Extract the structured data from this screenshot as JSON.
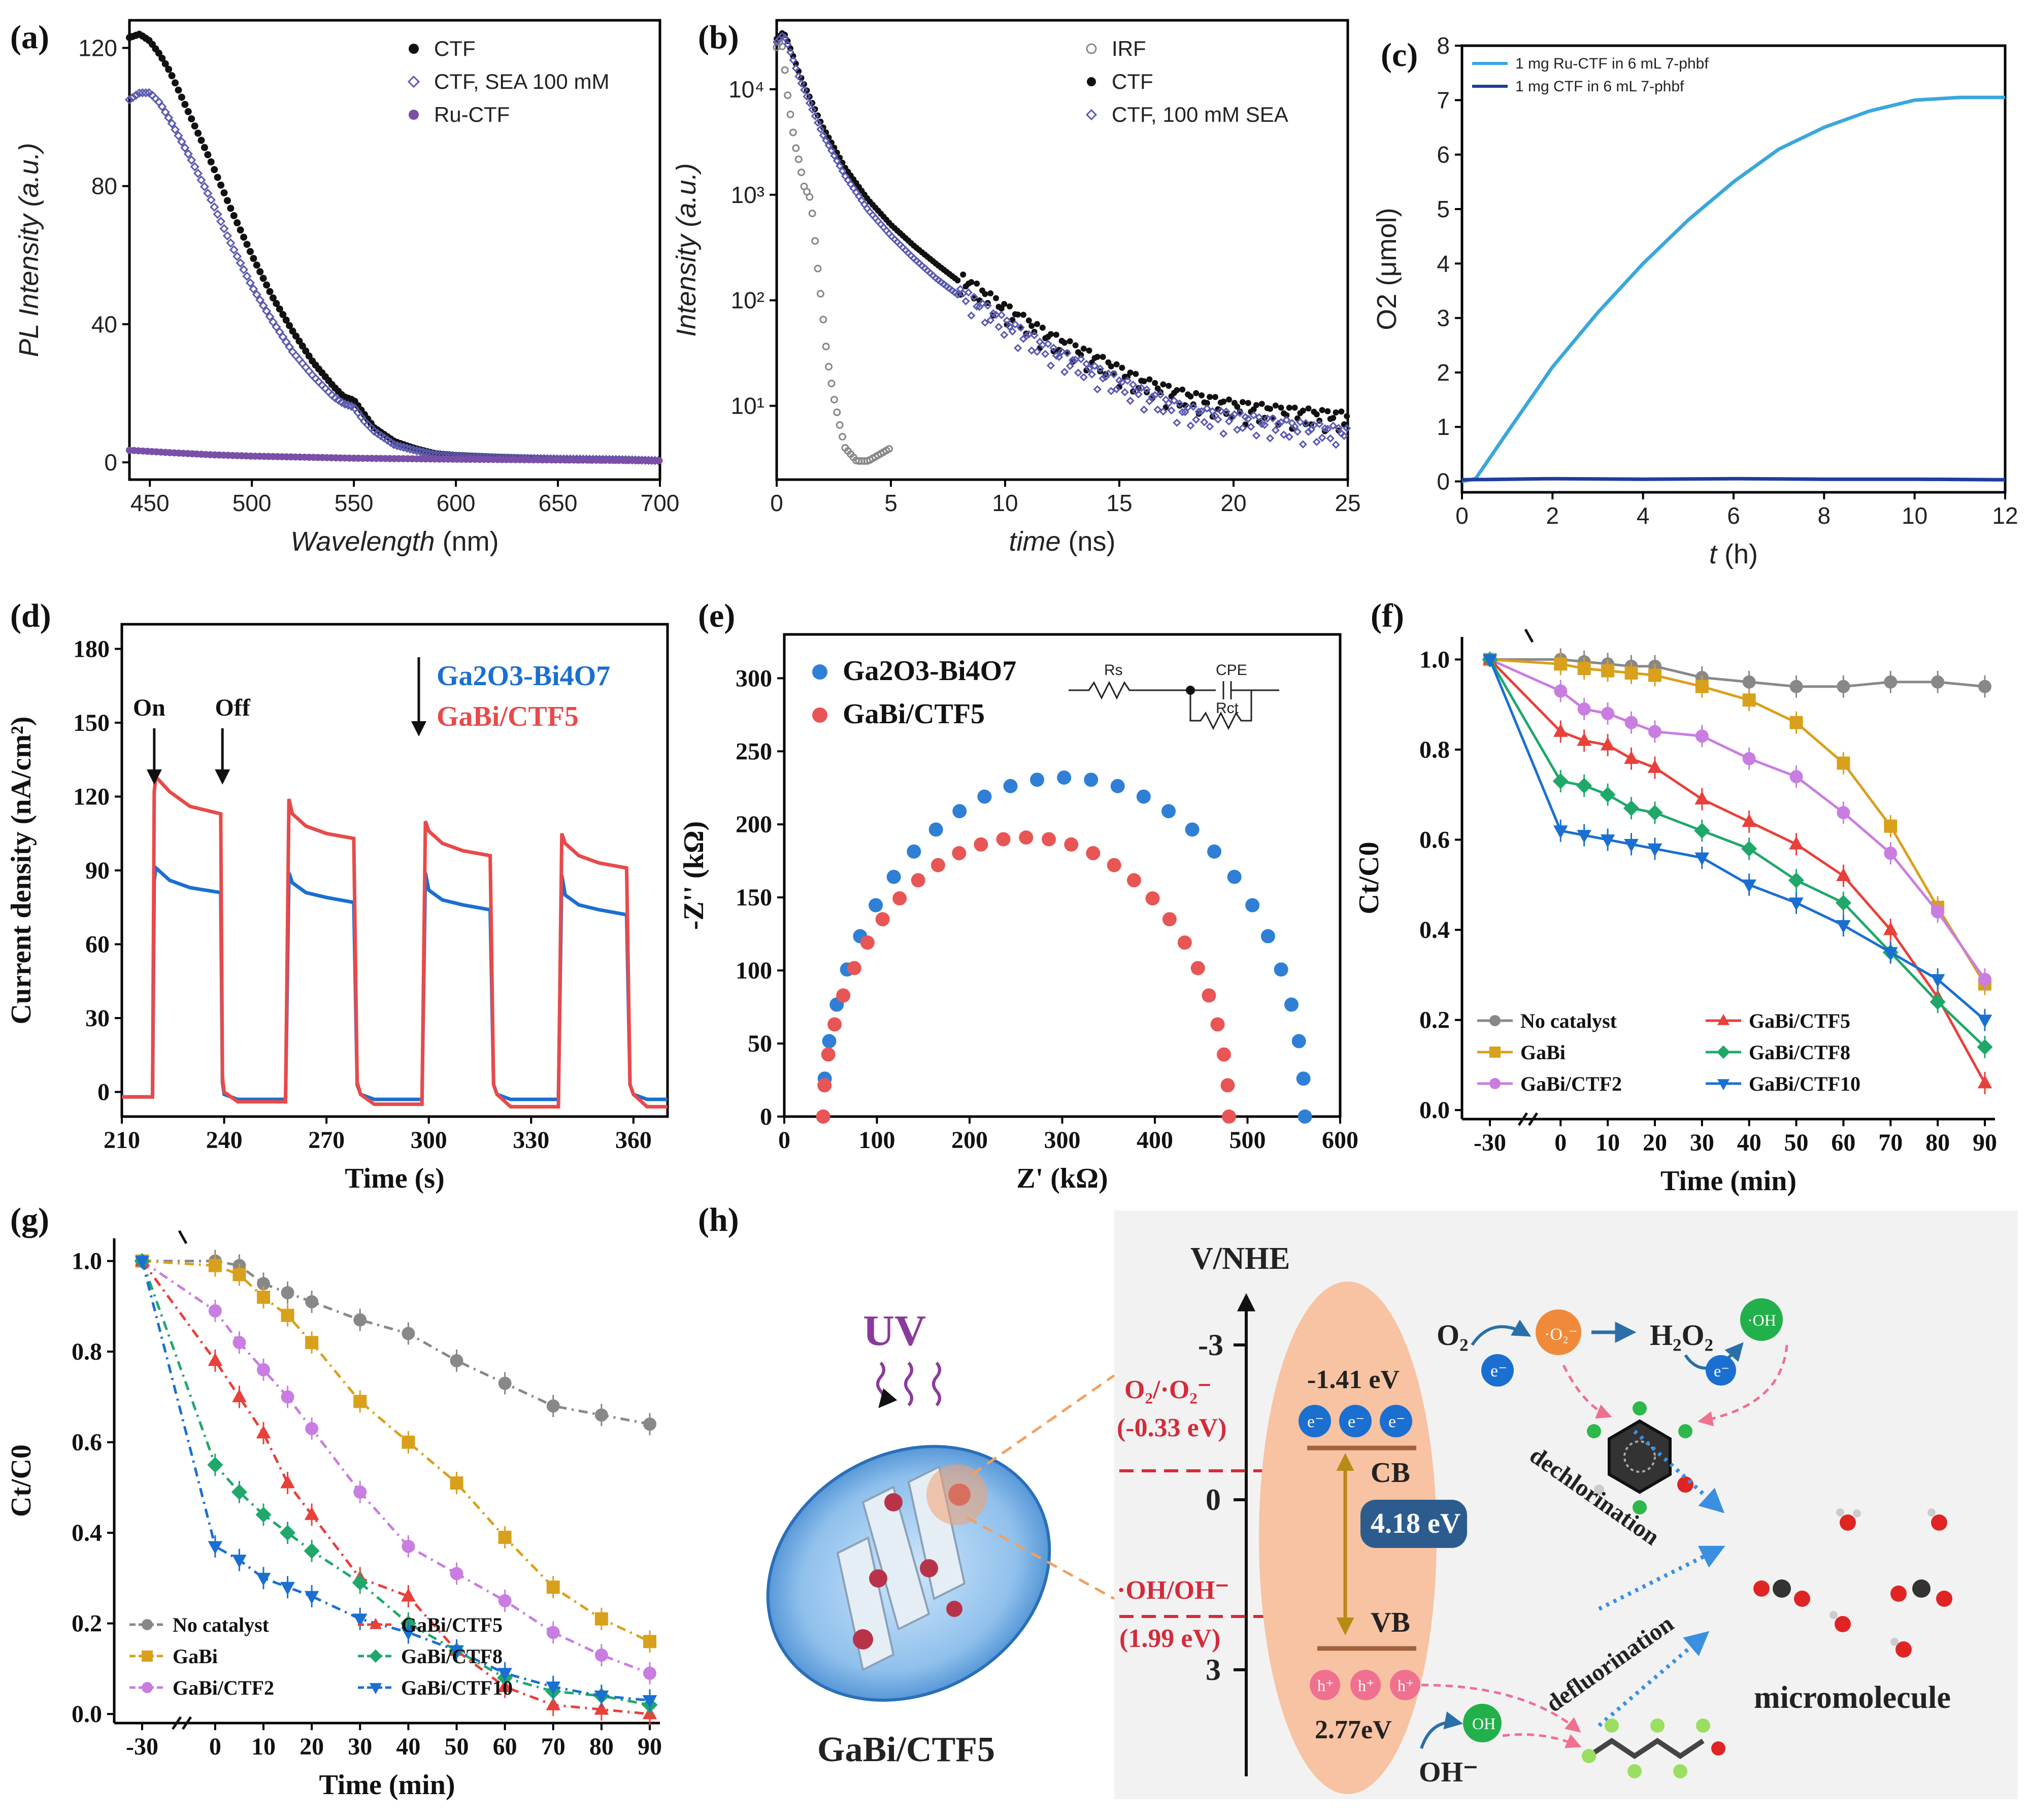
{
  "panels": {
    "a": {
      "label": "(a)"
    },
    "b": {
      "label": "(b)"
    },
    "c": {
      "label": "(c)"
    },
    "d": {
      "label": "(d)"
    },
    "e": {
      "label": "(e)"
    },
    "f": {
      "label": "(f)"
    },
    "g": {
      "label": "(g)"
    },
    "h": {
      "label": "(h)"
    }
  },
  "chart_data": [
    {
      "id": "a",
      "type": "scatter",
      "xlabel_italic": "Wavelength",
      "xlabel_unit": "(nm)",
      "ylabel": "PL Intensity (a.u.)",
      "xlim": [
        440,
        700
      ],
      "ylim": [
        -5,
        128
      ],
      "xticks": [
        450,
        500,
        550,
        600,
        650,
        700
      ],
      "yticks": [
        0,
        40,
        80,
        120
      ],
      "legend_position": "top-right",
      "series": [
        {
          "name": "CTF",
          "color": "#111111",
          "marker": "filled-circle",
          "x": [
            440,
            445,
            450,
            455,
            460,
            470,
            480,
            490,
            500,
            510,
            520,
            530,
            540,
            545,
            550,
            555,
            560,
            570,
            580,
            590,
            600,
            620,
            650,
            680,
            700
          ],
          "y": [
            123,
            124,
            122,
            118,
            113,
            100,
            87,
            73,
            60,
            48,
            38,
            29,
            22,
            19,
            18,
            14,
            10,
            6,
            4,
            2.5,
            2,
            1.5,
            1,
            0.8,
            0.5
          ]
        },
        {
          "name": "CTF, SEA 100 mM",
          "color": "#5a5ab0",
          "marker": "open-diamond",
          "x": [
            440,
            445,
            450,
            455,
            460,
            470,
            480,
            490,
            500,
            510,
            520,
            530,
            540,
            545,
            550,
            555,
            560,
            570,
            580,
            590,
            600,
            620,
            650,
            680,
            700
          ],
          "y": [
            105,
            107,
            107,
            104,
            99,
            88,
            76,
            63,
            51,
            41,
            32,
            25,
            19,
            17,
            16,
            12,
            9,
            5,
            3.5,
            2.2,
            1.8,
            1.3,
            1,
            0.8,
            0.5
          ]
        },
        {
          "name": "Ru-CTF",
          "color": "#7a4fa8",
          "marker": "filled-circle",
          "x": [
            440,
            460,
            480,
            500,
            550,
            600,
            650,
            700
          ],
          "y": [
            3.5,
            2.8,
            2.2,
            1.8,
            1.2,
            0.9,
            0.7,
            0.5
          ]
        }
      ]
    },
    {
      "id": "b",
      "type": "scatter",
      "xlabel_italic": "time",
      "xlabel_unit": "(ns)",
      "ylabel": "Intensity (a.u.)",
      "yscale": "log",
      "xlim": [
        0,
        25
      ],
      "ylim": [
        2,
        45000
      ],
      "xticks": [
        0,
        5,
        10,
        15,
        20,
        25
      ],
      "yticks": [
        10,
        100,
        1000,
        10000
      ],
      "ytick_labels": [
        "10¹",
        "10²",
        "10³",
        "10⁴"
      ],
      "legend_position": "top-right",
      "series": [
        {
          "name": "IRF",
          "color": "#888888",
          "marker": "open-circle",
          "x": [
            0,
            0.2,
            0.3,
            0.5,
            0.8,
            1.0,
            1.2,
            1.5,
            1.8,
            2.0,
            2.2,
            2.5,
            2.8,
            3.0,
            3.5,
            4.0,
            5.0
          ],
          "y": [
            25000,
            30000,
            20000,
            8000,
            3000,
            2000,
            1200,
            900,
            200,
            80,
            30,
            12,
            6,
            4,
            3,
            3,
            4
          ]
        },
        {
          "name": "CTF",
          "color": "#111111",
          "marker": "filled-circle",
          "x": [
            0,
            0.3,
            0.5,
            1,
            2,
            3,
            4,
            5,
            6,
            7,
            8,
            10,
            12,
            14,
            16,
            18,
            20,
            22,
            25
          ],
          "y": [
            30000,
            35000,
            28000,
            14000,
            4500,
            1800,
            900,
            520,
            330,
            220,
            150,
            75,
            40,
            25,
            15,
            11,
            9,
            8,
            7
          ]
        },
        {
          "name": "CTF, 100 mM SEA",
          "color": "#5a5ab0",
          "marker": "open-diamond",
          "x": [
            0,
            0.3,
            0.5,
            1,
            2,
            3,
            4,
            5,
            6,
            7,
            8,
            10,
            12,
            14,
            16,
            18,
            20,
            22,
            25
          ],
          "y": [
            28000,
            33000,
            26000,
            12500,
            3800,
            1500,
            720,
            410,
            250,
            160,
            110,
            55,
            30,
            19,
            12,
            8,
            7,
            6,
            5
          ]
        }
      ]
    },
    {
      "id": "c",
      "type": "line",
      "xlabel_italic": "t",
      "xlabel_unit": "(h)",
      "ylabel": "O2 (μmol)",
      "xlim": [
        0,
        12
      ],
      "ylim": [
        -0.2,
        8
      ],
      "xticks": [
        0,
        2,
        4,
        6,
        8,
        10,
        12
      ],
      "yticks": [
        0,
        1,
        2,
        3,
        4,
        5,
        6,
        7,
        8
      ],
      "legend_position": "top-left",
      "series": [
        {
          "name": "1 mg Ru-CTF in 6 mL 7-phbf",
          "color": "#3aa7dc",
          "x": [
            0,
            0.3,
            1,
            2,
            3,
            4,
            5,
            6,
            7,
            8,
            9,
            10,
            11,
            12
          ],
          "y": [
            0,
            0.05,
            0.9,
            2.1,
            3.1,
            4.0,
            4.8,
            5.5,
            6.1,
            6.5,
            6.8,
            7.0,
            7.05,
            7.05
          ]
        },
        {
          "name": "1 mg CTF in 6 mL 7-phbf",
          "color": "#1f3d99",
          "x": [
            0,
            2,
            4,
            6,
            8,
            10,
            12
          ],
          "y": [
            0.03,
            0.05,
            0.04,
            0.05,
            0.04,
            0.04,
            0.03
          ]
        }
      ]
    },
    {
      "id": "d",
      "type": "line",
      "xlabel": "Time (s)",
      "ylabel": "Current density (nA/cm²)",
      "xlim": [
        210,
        370
      ],
      "ylim": [
        -10,
        190
      ],
      "xticks": [
        210,
        240,
        270,
        300,
        330,
        360
      ],
      "yticks": [
        0,
        30,
        60,
        90,
        120,
        150,
        180
      ],
      "annotations": [
        "On",
        "Off"
      ],
      "legend_position": "top-right",
      "series": [
        {
          "name": "Ga2O3-Bi4O7",
          "color": "#1a6fd0",
          "x": [
            210,
            219,
            219.5,
            220,
            224,
            230,
            239,
            239.5,
            240,
            244,
            258,
            259,
            260,
            264,
            270,
            278,
            279,
            280,
            284,
            298,
            299,
            300,
            304,
            310,
            318,
            319,
            320,
            324,
            338,
            339,
            340,
            344,
            350,
            358,
            359,
            360,
            364,
            370
          ],
          "y": [
            -2,
            -2,
            86,
            91,
            86,
            83,
            81,
            4,
            -1,
            -3,
            -3,
            89,
            85,
            81,
            79,
            77,
            3,
            -1,
            -3,
            -3,
            89,
            82,
            78,
            76,
            74,
            3,
            -1,
            -3,
            -3,
            88,
            80,
            76,
            74,
            72,
            3,
            -1,
            -3,
            -3
          ]
        },
        {
          "name": "GaBi/CTF5",
          "color": "#e84a4a",
          "x": [
            210,
            219,
            219.5,
            220,
            224,
            230,
            239,
            239.5,
            240,
            244,
            258,
            259,
            260,
            264,
            270,
            278,
            279,
            280,
            284,
            298,
            299,
            300,
            304,
            310,
            318,
            319,
            320,
            324,
            338,
            339,
            340,
            344,
            350,
            358,
            359,
            360,
            364,
            370
          ],
          "y": [
            -2,
            -2,
            122,
            128,
            122,
            116,
            113,
            6,
            0,
            -4,
            -4,
            119,
            113,
            108,
            105,
            103,
            4,
            -1,
            -5,
            -5,
            110,
            106,
            101,
            98,
            96,
            3,
            -1,
            -6,
            -6,
            105,
            101,
            96,
            93,
            91,
            3,
            -1,
            -6,
            -6
          ]
        }
      ]
    },
    {
      "id": "e",
      "type": "scatter",
      "xlabel": "Z' (kΩ)",
      "ylabel": "-Z'' (kΩ)",
      "xlim": [
        0,
        600
      ],
      "ylim": [
        0,
        330
      ],
      "xticks": [
        0,
        100,
        200,
        300,
        400,
        500,
        600
      ],
      "yticks": [
        0,
        50,
        100,
        150,
        200,
        250,
        300
      ],
      "circuit_labels": [
        "Rs",
        "CPE",
        "Rct"
      ],
      "legend_position": "top-left",
      "series": [
        {
          "name": "Ga2O3-Bi4O7",
          "color": "#2f7fd6",
          "center": 302,
          "radius": 260,
          "peak": 232,
          "x_start": 42,
          "x_end": 562
        },
        {
          "name": "GaBi/CTF5",
          "color": "#e85555",
          "center": 261,
          "radius": 219,
          "peak": 191,
          "x_start": 42,
          "x_end": 479
        }
      ]
    },
    {
      "id": "f",
      "type": "line",
      "xlabel": "Time (min)",
      "ylabel": "Ct/C0",
      "xlim": [
        -30,
        90
      ],
      "ylim": [
        -0.02,
        1.05
      ],
      "xticks": [
        -30,
        0,
        10,
        20,
        30,
        40,
        50,
        60,
        70,
        80,
        90
      ],
      "yticks": [
        0.0,
        0.2,
        0.4,
        0.6,
        0.8,
        1.0
      ],
      "legend_position": "bottom-left",
      "x": [
        -30,
        0,
        5,
        10,
        15,
        20,
        30,
        40,
        50,
        60,
        70,
        80,
        90
      ],
      "series": [
        {
          "name": "No catalyst",
          "color": "#888888",
          "marker": "circle",
          "values": [
            1.0,
            1.0,
            0.995,
            0.99,
            0.985,
            0.985,
            0.96,
            0.95,
            0.94,
            0.94,
            0.95,
            0.95,
            0.94
          ]
        },
        {
          "name": "GaBi",
          "color": "#d9a01c",
          "marker": "square",
          "values": [
            1.0,
            0.99,
            0.98,
            0.975,
            0.97,
            0.965,
            0.94,
            0.91,
            0.86,
            0.77,
            0.63,
            0.45,
            0.28
          ]
        },
        {
          "name": "GaBi/CTF2",
          "color": "#c97de0",
          "marker": "circle",
          "values": [
            1.0,
            0.93,
            0.89,
            0.88,
            0.86,
            0.84,
            0.83,
            0.78,
            0.74,
            0.66,
            0.57,
            0.44,
            0.29
          ]
        },
        {
          "name": "GaBi/CTF5",
          "color": "#e8403a",
          "marker": "triangle-up",
          "values": [
            1.0,
            0.84,
            0.82,
            0.81,
            0.78,
            0.76,
            0.69,
            0.64,
            0.59,
            0.52,
            0.4,
            0.25,
            0.06
          ]
        },
        {
          "name": "GaBi/CTF8",
          "color": "#1fa86a",
          "marker": "diamond",
          "values": [
            1.0,
            0.73,
            0.72,
            0.7,
            0.67,
            0.66,
            0.62,
            0.58,
            0.51,
            0.46,
            0.35,
            0.24,
            0.14
          ]
        },
        {
          "name": "GaBi/CTF10",
          "color": "#1a6fd0",
          "marker": "triangle-down",
          "values": [
            1.0,
            0.62,
            0.61,
            0.6,
            0.59,
            0.58,
            0.56,
            0.5,
            0.46,
            0.41,
            0.35,
            0.29,
            0.2
          ]
        }
      ]
    },
    {
      "id": "g",
      "type": "line",
      "xlabel": "Time (min)",
      "ylabel": "Ct/C0",
      "xlim": [
        -30,
        90
      ],
      "ylim": [
        -0.02,
        1.05
      ],
      "xticks": [
        -30,
        0,
        10,
        20,
        30,
        40,
        50,
        60,
        70,
        80,
        90
      ],
      "yticks": [
        0.0,
        0.2,
        0.4,
        0.6,
        0.8,
        1.0
      ],
      "legend_position": "bottom-left",
      "x": [
        -30,
        0,
        5,
        10,
        15,
        20,
        30,
        40,
        50,
        60,
        70,
        80,
        90
      ],
      "series": [
        {
          "name": "No catalyst",
          "color": "#888888",
          "marker": "circle",
          "values": [
            1.0,
            1.0,
            0.99,
            0.95,
            0.93,
            0.91,
            0.87,
            0.84,
            0.78,
            0.73,
            0.68,
            0.66,
            0.64
          ]
        },
        {
          "name": "GaBi",
          "color": "#d9a01c",
          "marker": "square",
          "values": [
            1.0,
            0.99,
            0.97,
            0.92,
            0.88,
            0.82,
            0.69,
            0.6,
            0.51,
            0.39,
            0.28,
            0.21,
            0.16
          ]
        },
        {
          "name": "GaBi/CTF2",
          "color": "#c97de0",
          "marker": "circle",
          "values": [
            1.0,
            0.89,
            0.82,
            0.76,
            0.7,
            0.63,
            0.49,
            0.37,
            0.31,
            0.25,
            0.18,
            0.13,
            0.09
          ]
        },
        {
          "name": "GaBi/CTF5",
          "color": "#e8403a",
          "marker": "triangle-up",
          "values": [
            1.0,
            0.78,
            0.7,
            0.62,
            0.51,
            0.44,
            0.3,
            0.26,
            0.14,
            0.06,
            0.02,
            0.01,
            0.0
          ]
        },
        {
          "name": "GaBi/CTF8",
          "color": "#1fa86a",
          "marker": "diamond",
          "values": [
            1.0,
            0.55,
            0.49,
            0.44,
            0.4,
            0.36,
            0.29,
            0.2,
            0.14,
            0.08,
            0.05,
            0.04,
            0.02
          ]
        },
        {
          "name": "GaBi/CTF10",
          "color": "#1a6fd0",
          "marker": "triangle-down",
          "values": [
            1.0,
            0.37,
            0.34,
            0.3,
            0.28,
            0.26,
            0.21,
            0.18,
            0.14,
            0.09,
            0.06,
            0.04,
            0.03
          ]
        }
      ]
    }
  ],
  "diagram_h": {
    "light": "UV",
    "material": "GaBi/CTF5",
    "axis_label": "V/NHE",
    "axis_ticks": [
      "-3",
      "0",
      "3"
    ],
    "cb_energy": "-1.41 eV",
    "cb_label": "CB",
    "bandgap": "4.18 eV",
    "vb_label": "VB",
    "vb_energy": "2.77eV",
    "electron": "e⁻",
    "hole": "h⁺",
    "o2_couple": "O₂/·O₂⁻",
    "o2_potential": "(-0.33 eV)",
    "oh_couple": "·OH/OH⁻",
    "oh_potential": "(1.99 eV)",
    "o2": "O₂",
    "superoxide": "·O₂⁻",
    "h2o2": "H₂O₂",
    "hydroxyl_radical": "·OH",
    "oh_radical_small": "OH",
    "hydroxide": "OH⁻",
    "step1": "dechlorination",
    "step2": "defluorination",
    "product": "micromolecule"
  }
}
